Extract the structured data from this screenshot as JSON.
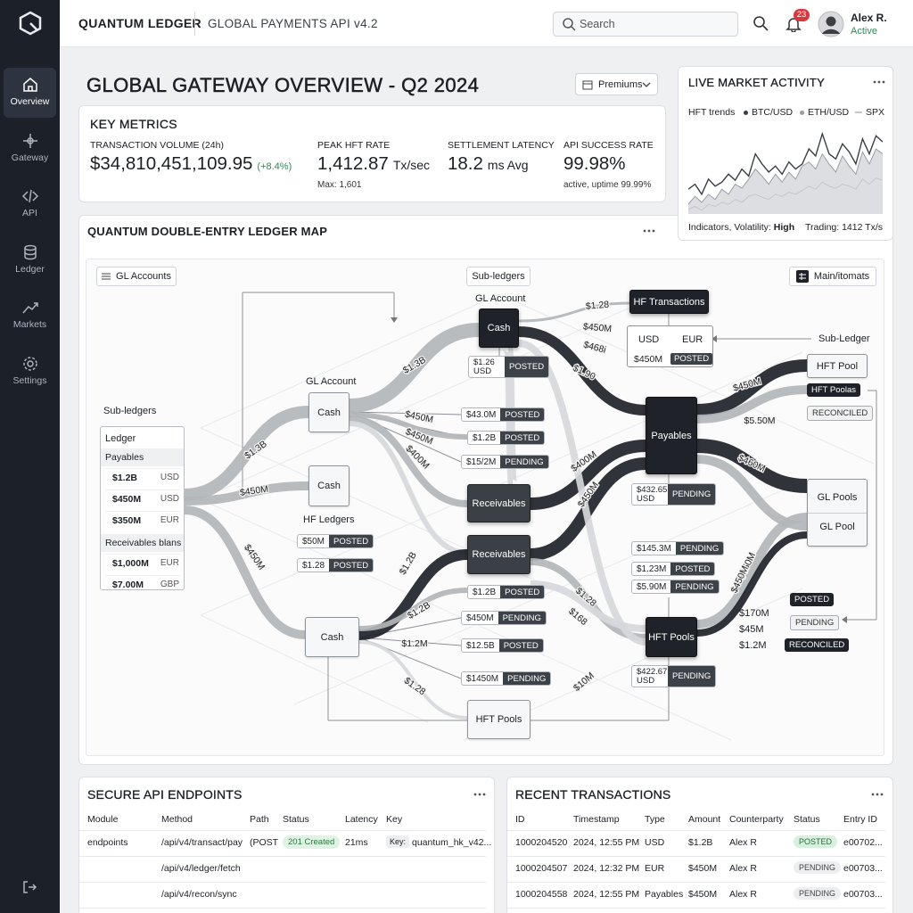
{
  "sidebar": {
    "items": [
      "Overview",
      "Gateway",
      "API",
      "Ledger",
      "Markets",
      "Settings"
    ]
  },
  "header": {
    "brand": "QUANTUM LEDGER",
    "product": "GLOBAL PAYMENTS API v4.2",
    "search": "Search",
    "notifications": "23",
    "user": {
      "name": "Alex R.",
      "status": "Active"
    }
  },
  "overview": {
    "title": "GLOBAL GATEWAY OVERVIEW - Q2 2024",
    "filter": "Premiums"
  },
  "metrics": {
    "title": "KEY METRICS",
    "items": [
      {
        "label": "TRANSACTION VOLUME (24h)",
        "value": "$34,810,451,109.95",
        "change": "(+8.4%)"
      },
      {
        "label": "PEAK HFT RATE",
        "value": "1,412.87",
        "unit": "Tx/sec",
        "note": "Max: 1,601"
      },
      {
        "label": "SETTLEMENT LATENCY",
        "value": "18.2",
        "unit": "ms Avg"
      },
      {
        "label": "API SUCCESS RATE",
        "value": "99.98%",
        "note": "active, uptime 99.99%"
      }
    ]
  },
  "market": {
    "title": "LIVE MARKET ACTIVITY",
    "legend_title": "HFT trends",
    "series": [
      {
        "name": "BTC/USD",
        "color": "#3a3f46",
        "values": [
          35,
          40,
          30,
          45,
          38,
          42,
          50,
          44,
          55,
          48,
          70,
          60,
          52,
          58,
          50,
          62,
          55,
          60,
          75,
          68,
          90,
          70,
          65,
          80,
          72,
          60,
          85,
          70,
          88,
          82
        ]
      },
      {
        "name": "ETH/USD",
        "color": "#9a9ea4",
        "values": [
          20,
          28,
          22,
          30,
          25,
          35,
          30,
          40,
          36,
          45,
          55,
          48,
          40,
          50,
          42,
          52,
          45,
          58,
          62,
          55,
          70,
          60,
          52,
          68,
          58,
          50,
          72,
          60,
          75,
          70
        ]
      },
      {
        "name": "SPX",
        "color": "#c4c7cb",
        "values": [
          15,
          18,
          14,
          20,
          18,
          22,
          20,
          25,
          22,
          28,
          30,
          27,
          25,
          30,
          28,
          32,
          30,
          34,
          38,
          35,
          42,
          38,
          36,
          40,
          38,
          35,
          45,
          40,
          46,
          44
        ]
      }
    ],
    "indicators": "Indicators, Volatility:",
    "volatility": "High",
    "trading": "Trading: 1412 Tx/s"
  },
  "ledger": {
    "title": "QUANTUM DOUBLE-ENTRY LEDGER MAP",
    "controls": [
      "GL Accounts",
      "Sub-ledgers",
      "Main/itomats"
    ],
    "captions": [
      "GL Account",
      "GL Account",
      "HF Ledgers",
      "Sub-ledgers",
      "Sub-Ledger"
    ],
    "panel": {
      "title": "Ledger",
      "groups": [
        {
          "name": "Payables",
          "rows": [
            [
              "$1.2B",
              "USD"
            ],
            [
              "$450M",
              "USD"
            ],
            [
              "$350M",
              "EUR"
            ]
          ]
        },
        {
          "name": "Receivables blans",
          "rows": [
            [
              "$1,000M",
              "EUR"
            ],
            [
              "$7.00M",
              "GBP"
            ]
          ]
        }
      ]
    },
    "nodes": [
      "Cash",
      "HF Transactions",
      "Cash",
      "Cash",
      "Receivables",
      "Receivables",
      "Payables",
      "Cash",
      "HFT Pools",
      "HFT Pools",
      "HFT Pool"
    ],
    "currency_box": {
      "currencies": [
        "USD",
        "EUR"
      ],
      "amount": "$450M",
      "status": "POSTED"
    },
    "gl_pools": [
      "GL Pools",
      "GL Pool"
    ],
    "tags": [
      {
        "amount": "$1.26 USD",
        "status": "POSTED"
      },
      {
        "amount": "$43.0M",
        "status": "POSTED"
      },
      {
        "amount": "$1.2B",
        "status": "POSTED"
      },
      {
        "amount": "$15/2M",
        "status": "PENDING"
      },
      {
        "amount": "$432.65 USD",
        "status": "PENDING"
      },
      {
        "amount": "$145.3M",
        "status": "PENDING"
      },
      {
        "amount": "$1.23M",
        "status": "POSTED"
      },
      {
        "amount": "$5.90M",
        "status": "PENDING"
      },
      {
        "amount": "$1.2B",
        "status": "POSTED"
      },
      {
        "amount": "$450M",
        "status": "PENDING"
      },
      {
        "amount": "$12.5B",
        "status": "POSTED"
      },
      {
        "amount": "$1450M",
        "status": "PENDING"
      },
      {
        "amount": "$422.67 USD",
        "status": "PENDING"
      },
      {
        "amount": "$50M",
        "status": "POSTED"
      },
      {
        "amount": "$1.28",
        "status": "POSTED"
      }
    ],
    "statuses": [
      "HFT Poolas",
      "RECONCILED",
      "POSTED",
      "PENDING",
      "RECONCILED"
    ],
    "amounts": [
      "$170M",
      "$45M",
      "$1.2M"
    ],
    "flow_labels": [
      "$1.3B",
      "$1.3B",
      "$450M",
      "$450M",
      "$1.2B",
      "$1.2M",
      "$1.28",
      "$450M",
      "$450M",
      "$400M",
      "$1.2B",
      "$1.28",
      "$450M",
      "$468i",
      "$1.90",
      "$400M",
      "$450M",
      "$1.28",
      "$168",
      "$10M",
      "$450M",
      "$5.50M",
      "$460M",
      "$450M",
      "$450M"
    ]
  },
  "api": {
    "title": "SECURE API ENDPOINTS",
    "columns": [
      "Module",
      "Method",
      "Path",
      "Status",
      "Latency",
      "Key"
    ],
    "rows": [
      {
        "module": "endpoints",
        "method": "/api/v4/transact/pay",
        "path": "(POST",
        "status": "201 Created",
        "latency": "21ms",
        "key_label": "Key:",
        "key": "quantum_hk_v42..."
      },
      {
        "method": "/api/v4/ledger/fetch"
      },
      {
        "method": "/api/v4/recon/sync"
      }
    ]
  },
  "transactions": {
    "title": "RECENT TRANSACTIONS",
    "columns": [
      "ID",
      "Timestamp",
      "Type",
      "Amount",
      "Counterparty",
      "Status",
      "Entry ID"
    ],
    "rows": [
      [
        "1000204520",
        "2024, 12:55 PM",
        "USD",
        "$1.2B",
        "Alex R",
        "POSTED",
        "e00702..."
      ],
      [
        "1000204507",
        "2024, 12:32 PM",
        "EUR",
        "$450M",
        "Alex R",
        "PENDING",
        "e00703..."
      ],
      [
        "1000204558",
        "2024, 12:55 PM",
        "Payables",
        "$450M",
        "Alex R",
        "PENDING",
        "e00703..."
      ]
    ]
  }
}
